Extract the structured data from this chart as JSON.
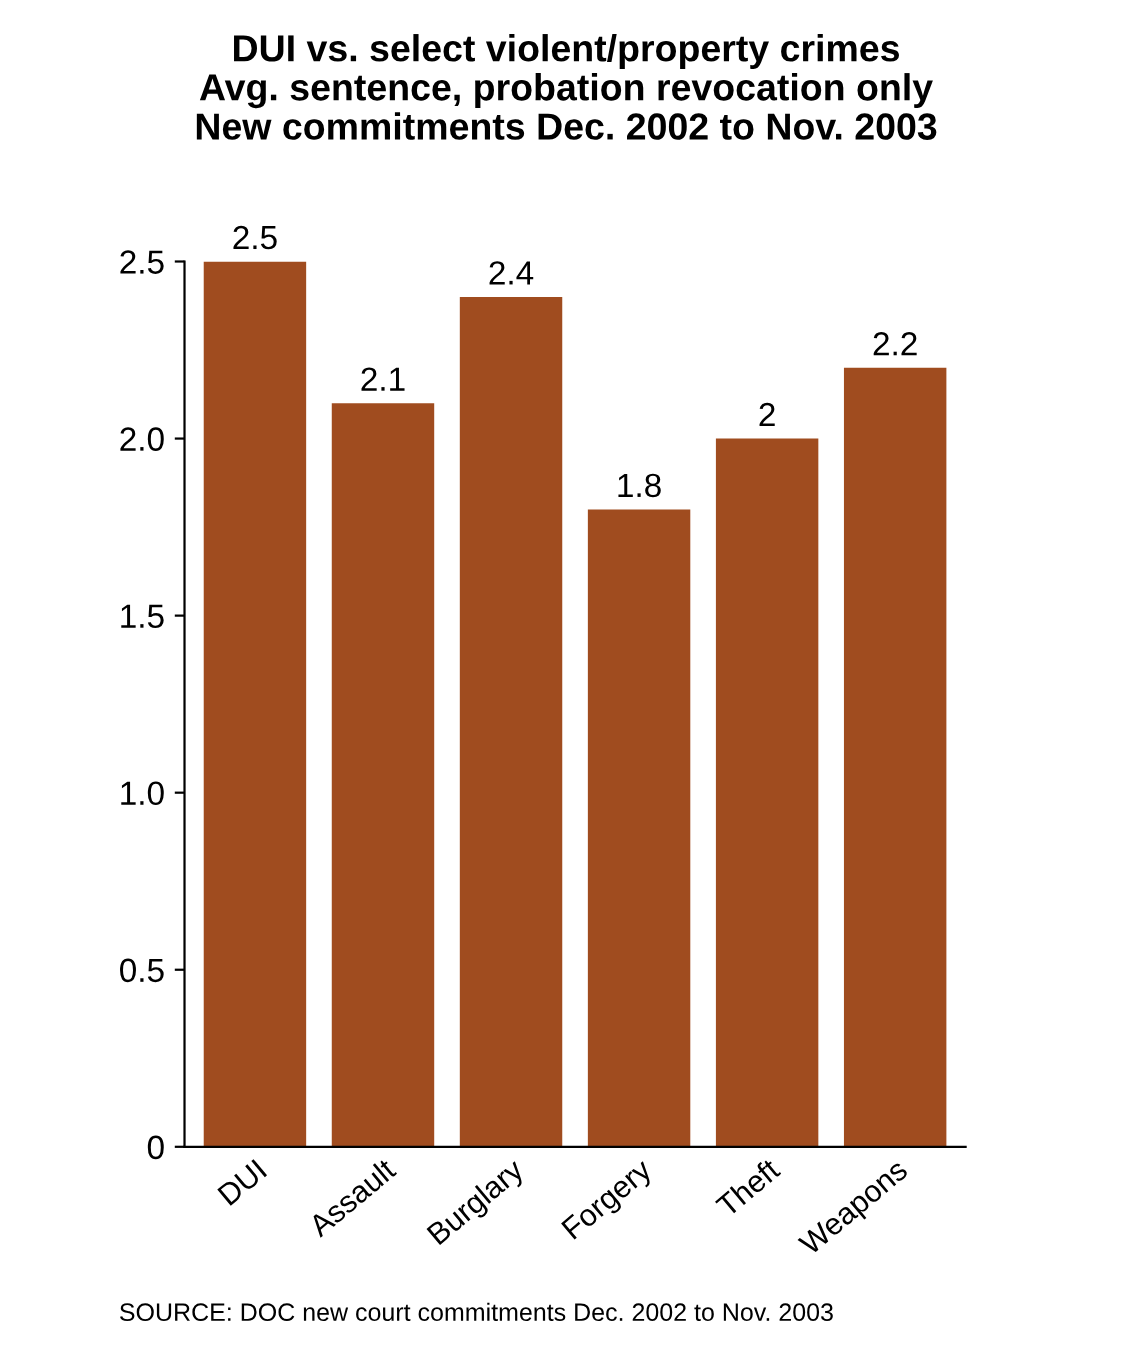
{
  "chart_data": {
    "type": "bar",
    "title": "DUI vs. select violent/property crimes\nAvg. sentence, probation revocation only\nNew commitments Dec. 2002 to Nov. 2003",
    "categories": [
      "DUI",
      "Assault",
      "Burglary",
      "Forgery",
      "Theft",
      "Weapons"
    ],
    "values": [
      2.5,
      2.1,
      2.4,
      1.8,
      2,
      2.2
    ],
    "color": "#a04c1f",
    "ylim": [
      0,
      2.5
    ],
    "yticks": [
      0,
      0.5,
      {
        "value": 1.0,
        "label": "1.0"
      },
      1.5,
      {
        "value": 2.0,
        "label": "2.0"
      },
      2.5
    ],
    "grid": false,
    "data_labels": true,
    "annotations": [
      "SOURCE: DOC new court commitments Dec. 2002 to Nov. 2003"
    ]
  }
}
